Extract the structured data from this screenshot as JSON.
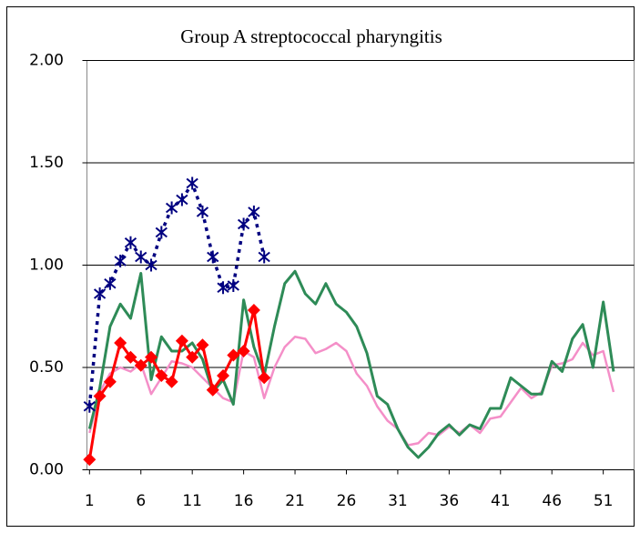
{
  "chart_data": {
    "type": "line",
    "title": "Group A streptococcal pharyngitis",
    "x": [
      1,
      2,
      3,
      4,
      5,
      6,
      7,
      8,
      9,
      10,
      11,
      12,
      13,
      14,
      15,
      16,
      17,
      18,
      19,
      20,
      21,
      22,
      23,
      24,
      25,
      26,
      27,
      28,
      29,
      30,
      31,
      32,
      33,
      34,
      35,
      36,
      37,
      38,
      39,
      40,
      41,
      42,
      43,
      44,
      45,
      46,
      47,
      48,
      49,
      50,
      51,
      52
    ],
    "xlim": [
      0.75,
      54
    ],
    "xticks": [
      1,
      6,
      11,
      16,
      21,
      26,
      31,
      36,
      41,
      46,
      51
    ],
    "ylim": [
      0,
      2
    ],
    "yticks": [
      {
        "value": 0,
        "label": "0.00"
      },
      {
        "value": 0.5,
        "label": "0.50"
      },
      {
        "value": 1,
        "label": "1.00"
      },
      {
        "value": 1.5,
        "label": "1.50"
      },
      {
        "value": 2,
        "label": "2.00"
      }
    ],
    "grid": true,
    "series": [
      {
        "color": "#f48fc8",
        "width": 2.5,
        "values": [
          0.18,
          0.38,
          0.47,
          0.5,
          0.48,
          0.52,
          0.37,
          0.45,
          0.53,
          0.52,
          0.5,
          0.45,
          0.4,
          0.35,
          0.33,
          0.58,
          0.55,
          0.35,
          0.5,
          0.6,
          0.65,
          0.64,
          0.57,
          0.59,
          0.62,
          0.58,
          0.47,
          0.41,
          0.31,
          0.24,
          0.2,
          0.12,
          0.13,
          0.18,
          0.17,
          0.21,
          0.18,
          0.22,
          0.18,
          0.25,
          0.26,
          0.33,
          0.4,
          0.35,
          0.38,
          0.51,
          0.52,
          0.54,
          0.62,
          0.56,
          0.58,
          0.38
        ]
      },
      {
        "color": "#2e8b57",
        "width": 3,
        "values": [
          0.2,
          0.4,
          0.7,
          0.81,
          0.74,
          0.96,
          0.44,
          0.65,
          0.58,
          0.58,
          0.62,
          0.54,
          0.38,
          0.44,
          0.32,
          0.83,
          0.6,
          0.46,
          0.7,
          0.91,
          0.97,
          0.86,
          0.81,
          0.91,
          0.81,
          0.77,
          0.7,
          0.57,
          0.36,
          0.32,
          0.2,
          0.11,
          0.06,
          0.11,
          0.18,
          0.22,
          0.17,
          0.22,
          0.2,
          0.3,
          0.3,
          0.45,
          0.41,
          0.37,
          0.37,
          0.53,
          0.48,
          0.64,
          0.71,
          0.5,
          0.82,
          0.48
        ]
      },
      {
        "color": "#000080",
        "width": 3.5,
        "dash": true,
        "marker": "asterisk",
        "values": [
          0.31,
          0.86,
          0.91,
          1.02,
          1.11,
          1.04,
          1.0,
          1.16,
          1.28,
          1.32,
          1.4,
          1.26,
          1.04,
          0.89,
          0.9,
          1.2,
          1.26,
          1.04,
          null,
          null,
          null,
          null,
          null,
          null,
          null,
          null,
          null,
          null,
          null,
          null,
          null,
          null,
          null,
          null,
          null,
          null,
          null,
          null,
          null,
          null,
          null,
          null,
          null,
          null,
          null,
          null,
          null,
          null,
          null,
          null,
          null,
          null
        ]
      },
      {
        "color": "#ff0000",
        "width": 3,
        "marker": "diamond",
        "values": [
          0.05,
          0.36,
          0.43,
          0.62,
          0.55,
          0.51,
          0.55,
          0.46,
          0.43,
          0.63,
          0.55,
          0.61,
          0.39,
          0.46,
          0.56,
          0.58,
          0.78,
          0.45,
          null,
          null,
          null,
          null,
          null,
          null,
          null,
          null,
          null,
          null,
          null,
          null,
          null,
          null,
          null,
          null,
          null,
          null,
          null,
          null,
          null,
          null,
          null,
          null,
          null,
          null,
          null,
          null,
          null,
          null,
          null,
          null,
          null,
          null
        ]
      }
    ]
  }
}
